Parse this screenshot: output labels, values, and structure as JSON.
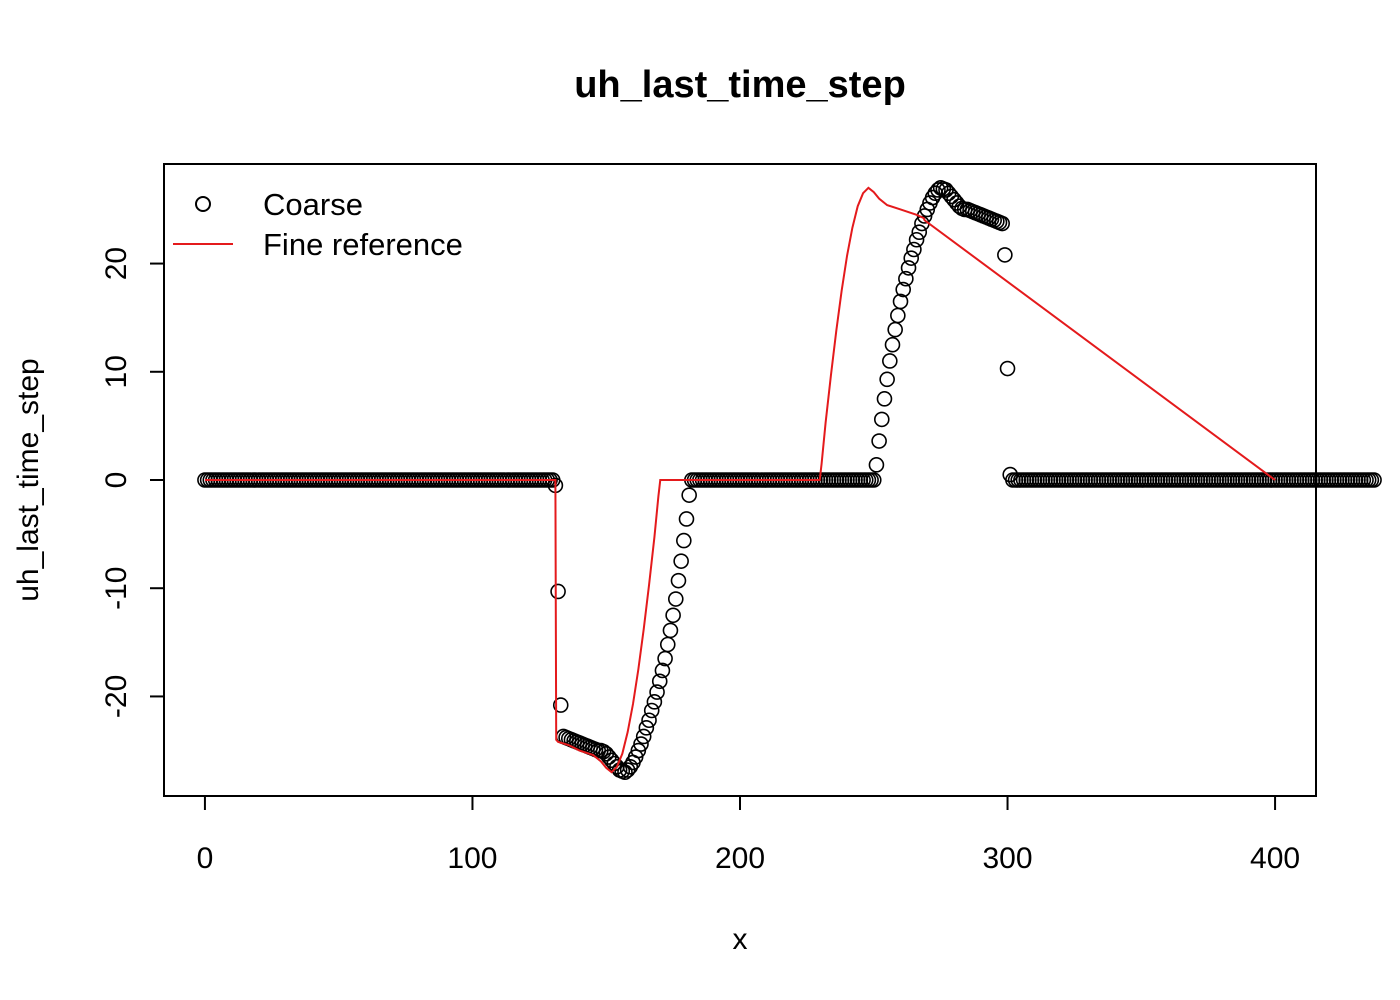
{
  "chart_data": {
    "type": "scatter",
    "title": "uh_last_time_step",
    "xlabel": "x",
    "ylabel": "uh_last_time_step",
    "xlim": [
      -15.3,
      415.3
    ],
    "ylim": [
      -29.2,
      29.2
    ],
    "x_ticks": [
      0,
      100,
      200,
      300,
      400
    ],
    "x_tick_labels": [
      "0",
      "100",
      "200",
      "300",
      "400"
    ],
    "y_ticks": [
      -20,
      -10,
      0,
      10,
      20
    ],
    "y_tick_labels": [
      "-20",
      "-10",
      "0",
      "10",
      "20"
    ],
    "grid": false,
    "legend_position": "top-left",
    "legend": [
      {
        "label": "Coarse",
        "kind": "points",
        "color": "#000000"
      },
      {
        "label": "Fine reference",
        "kind": "line",
        "color": "#e41a1c"
      }
    ],
    "series": [
      {
        "name": "Coarse",
        "kind": "points",
        "color": "#000000",
        "x_start": 0,
        "x_step": 1,
        "y": [
          0,
          0,
          0,
          0,
          0,
          0,
          0,
          0,
          0,
          0,
          0,
          0,
          0,
          0,
          0,
          0,
          0,
          0,
          0,
          0,
          0,
          0,
          0,
          0,
          0,
          0,
          0,
          0,
          0,
          0,
          0,
          0,
          0,
          0,
          0,
          0,
          0,
          0,
          0,
          0,
          0,
          0,
          0,
          0,
          0,
          0,
          0,
          0,
          0,
          0,
          0,
          0,
          0,
          0,
          0,
          0,
          0,
          0,
          0,
          0,
          0,
          0,
          0,
          0,
          0,
          0,
          0,
          0,
          0,
          0,
          0,
          0,
          0,
          0,
          0,
          0,
          0,
          0,
          0,
          0,
          0,
          0,
          0,
          0,
          0,
          0,
          0,
          0,
          0,
          0,
          0,
          0,
          0,
          0,
          0,
          0,
          0,
          0,
          0,
          0,
          0,
          0,
          0,
          0,
          0,
          0,
          0,
          0,
          0,
          0,
          0,
          0,
          0,
          0,
          0,
          0,
          0,
          0,
          0,
          0,
          0,
          0,
          0,
          0,
          0,
          0,
          0,
          0,
          0,
          0,
          0,
          -0.5,
          -10.3,
          -20.8,
          -23.7,
          -23.8,
          -23.9,
          -24,
          -24.1,
          -24.2,
          -24.3,
          -24.4,
          -24.5,
          -24.6,
          -24.7,
          -24.8,
          -24.9,
          -25,
          -25,
          -25.1,
          -25.3,
          -25.6,
          -25.9,
          -26.2,
          -26.5,
          -26.8,
          -26.9,
          -27,
          -26.8,
          -26.5,
          -26.1,
          -25.6,
          -25,
          -24.4,
          -23.7,
          -22.9,
          -22.2,
          -21.3,
          -20.5,
          -19.6,
          -18.6,
          -17.6,
          -16.5,
          -15.2,
          -13.9,
          -12.5,
          -11,
          -9.3,
          -7.5,
          -5.6,
          -3.6,
          -1.4,
          0,
          0,
          0,
          0,
          0,
          0,
          0,
          0,
          0,
          0,
          0,
          0,
          0,
          0,
          0,
          0,
          0,
          0,
          0,
          0,
          0,
          0,
          0,
          0,
          0,
          0,
          0,
          0,
          0,
          0,
          0,
          0,
          0,
          0,
          0,
          0,
          0,
          0,
          0,
          0,
          0,
          0,
          0,
          0,
          0,
          0,
          0,
          0,
          0,
          0,
          0,
          0,
          0,
          0,
          0,
          0,
          0,
          0,
          0,
          0,
          0,
          0,
          0,
          0,
          0,
          0,
          0,
          0,
          0,
          1.4,
          3.6,
          5.6,
          7.5,
          9.3,
          11,
          12.5,
          13.9,
          15.2,
          16.5,
          17.6,
          18.6,
          19.6,
          20.5,
          21.3,
          22.2,
          22.9,
          23.7,
          24.4,
          25,
          25.6,
          26.1,
          26.5,
          26.8,
          27,
          26.9,
          26.8,
          26.5,
          26.2,
          25.9,
          25.6,
          25.3,
          25.1,
          25,
          25,
          24.9,
          24.8,
          24.7,
          24.6,
          24.5,
          24.4,
          24.3,
          24.2,
          24.1,
          24,
          23.9,
          23.8,
          23.7,
          20.8,
          10.3,
          0.5,
          0,
          0,
          0,
          0,
          0,
          0,
          0,
          0,
          0,
          0,
          0,
          0,
          0,
          0,
          0,
          0,
          0,
          0,
          0,
          0,
          0,
          0,
          0,
          0,
          0,
          0,
          0,
          0,
          0,
          0,
          0,
          0,
          0,
          0,
          0,
          0,
          0,
          0,
          0,
          0,
          0,
          0,
          0,
          0,
          0,
          0,
          0,
          0,
          0,
          0,
          0,
          0,
          0,
          0,
          0,
          0,
          0,
          0,
          0,
          0,
          0,
          0,
          0,
          0,
          0,
          0,
          0,
          0,
          0,
          0,
          0,
          0,
          0,
          0,
          0,
          0,
          0,
          0,
          0,
          0,
          0,
          0,
          0,
          0,
          0,
          0,
          0,
          0,
          0,
          0,
          0,
          0,
          0,
          0,
          0,
          0,
          0,
          0,
          0,
          0,
          0,
          0,
          0,
          0,
          0,
          0,
          0,
          0,
          0,
          0,
          0,
          0,
          0,
          0,
          0,
          0,
          0,
          0,
          0,
          0,
          0,
          0,
          0,
          0,
          0,
          0,
          0,
          0,
          0,
          0,
          0,
          0,
          0,
          0,
          0,
          0
        ]
      },
      {
        "name": "Fine reference",
        "kind": "line",
        "color": "#e41a1c",
        "x": [
          0,
          131,
          131.3,
          132,
          136,
          140,
          145,
          148,
          150,
          152,
          154,
          156,
          158,
          160,
          162,
          164,
          166,
          168,
          169.5,
          170.2,
          200,
          229.8,
          230.5,
          232,
          234,
          236,
          238,
          240,
          242,
          244,
          246,
          248,
          250,
          252,
          255,
          260,
          266,
          268.7,
          269,
          400
        ],
        "y": [
          0,
          0,
          -24,
          -24.2,
          -24.5,
          -25,
          -25.4,
          -26,
          -26.6,
          -27,
          -26.5,
          -25.3,
          -23.3,
          -20.7,
          -17.5,
          -13.8,
          -9.7,
          -5.3,
          -1.5,
          0,
          0,
          0,
          1.5,
          5.3,
          9.7,
          13.8,
          17.5,
          20.7,
          23.3,
          25.3,
          26.5,
          27,
          26.6,
          26,
          25.4,
          25,
          24.5,
          24.2,
          24,
          0
        ]
      }
    ]
  }
}
